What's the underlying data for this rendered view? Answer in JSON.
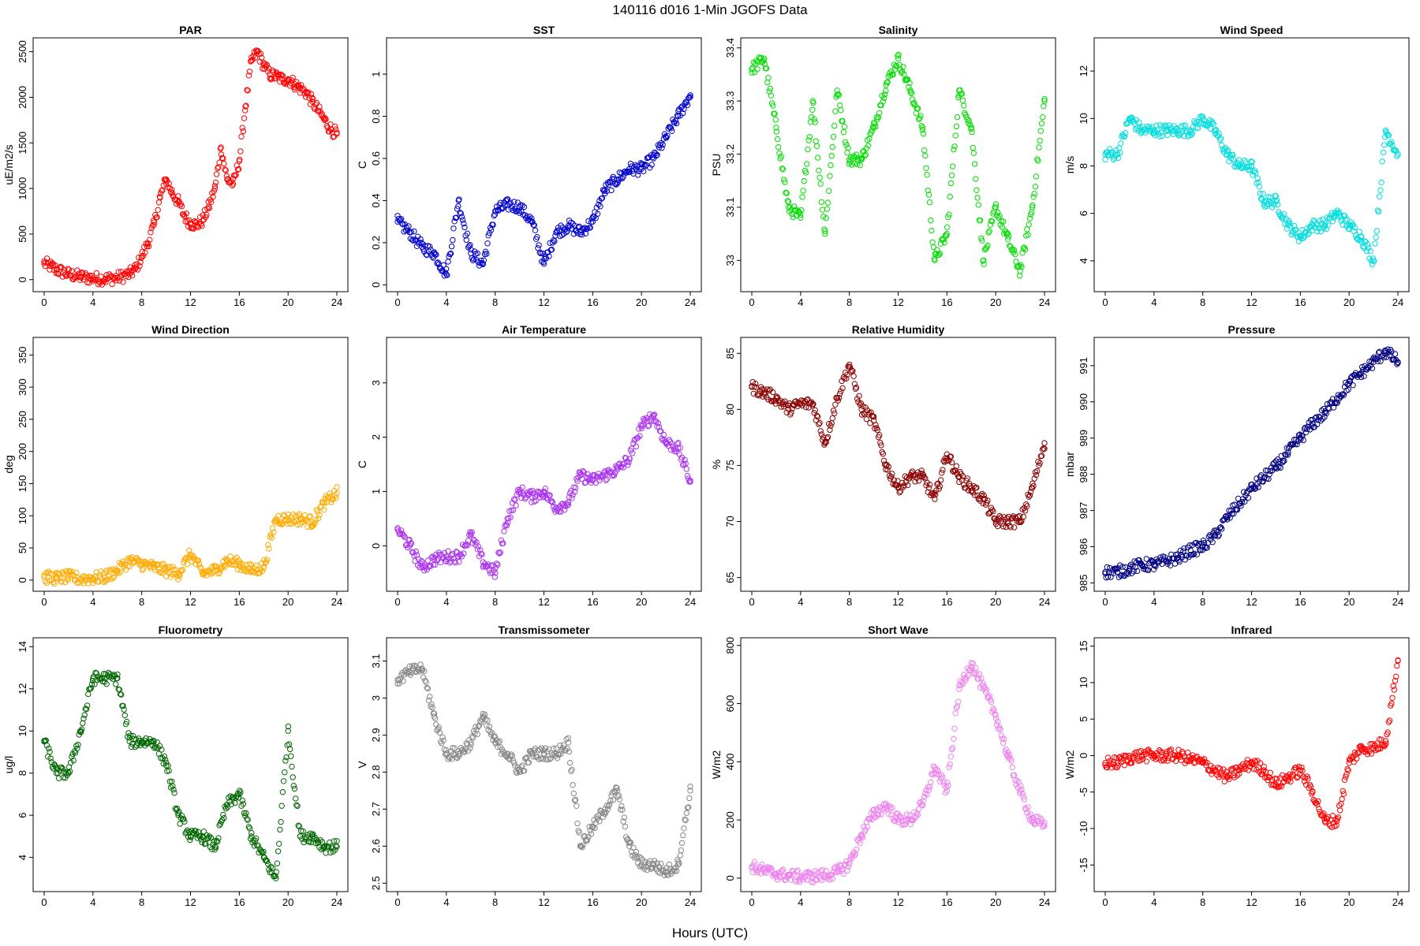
{
  "figure": {
    "title": "140116   d016   1-Min  JGOFS Data",
    "xlabel": "Hours (UTC)"
  },
  "chart_data": [
    {
      "type": "scatter",
      "title": "PAR",
      "ylabel": "uE/m2/s",
      "color": "#ff0000",
      "xlim": [
        0,
        24
      ],
      "xticks": [
        0,
        4,
        8,
        12,
        16,
        20,
        24
      ],
      "ylim": [
        -80,
        2600
      ],
      "yticks": [
        0,
        500,
        1000,
        1500,
        2000,
        2500
      ],
      "x": [
        0,
        0.5,
        1,
        2,
        3,
        4,
        5,
        6,
        7,
        7.5,
        8,
        8.5,
        9,
        9.5,
        10,
        10.5,
        11,
        11.5,
        12,
        12.5,
        13,
        13.5,
        14,
        14.5,
        15,
        15.5,
        16,
        16.5,
        17,
        17.5,
        18,
        18.5,
        19,
        19.5,
        20,
        20.5,
        21,
        21.5,
        22,
        22.5,
        23,
        23.5,
        24
      ],
      "y": [
        180,
        150,
        110,
        60,
        30,
        15,
        10,
        20,
        60,
        120,
        250,
        400,
        600,
        900,
        1100,
        950,
        850,
        700,
        620,
        600,
        650,
        800,
        1000,
        1450,
        1100,
        1050,
        1300,
        1900,
        2400,
        2500,
        2350,
        2250,
        2230,
        2200,
        2200,
        2150,
        2100,
        2050,
        1950,
        1850,
        1750,
        1650,
        1600
      ]
    },
    {
      "type": "scatter",
      "title": "SST",
      "ylabel": "C",
      "color": "#0000cc",
      "xlim": [
        0,
        24
      ],
      "xticks": [
        0,
        4,
        8,
        12,
        16,
        20,
        24
      ],
      "ylim": [
        -0.01,
        1.15
      ],
      "yticks": [
        0.0,
        0.2,
        0.4,
        0.6,
        0.8,
        1.0
      ],
      "x": [
        0,
        1,
        2,
        3,
        4,
        5,
        6,
        7,
        8,
        9,
        10,
        11,
        12,
        13,
        14,
        15,
        16,
        17,
        18,
        19,
        20,
        21,
        22,
        23,
        24
      ],
      "y": [
        0.3,
        0.25,
        0.18,
        0.15,
        0.05,
        0.4,
        0.15,
        0.1,
        0.35,
        0.38,
        0.37,
        0.3,
        0.1,
        0.25,
        0.28,
        0.25,
        0.3,
        0.45,
        0.5,
        0.55,
        0.55,
        0.6,
        0.7,
        0.8,
        0.9
      ]
    },
    {
      "type": "scatter",
      "title": "Salinity",
      "ylabel": "PSU",
      "color": "#00dd00",
      "xlim": [
        0,
        24
      ],
      "xticks": [
        0,
        4,
        8,
        12,
        16,
        20,
        24
      ],
      "ylim": [
        32.95,
        33.41
      ],
      "yticks": [
        33.0,
        33.1,
        33.2,
        33.3,
        33.4
      ],
      "x": [
        0,
        1,
        2,
        3,
        4,
        5,
        6,
        7,
        8,
        9,
        10,
        11,
        12,
        13,
        14,
        15,
        16,
        17,
        18,
        19,
        20,
        21,
        22,
        23,
        24
      ],
      "y": [
        33.36,
        33.38,
        33.25,
        33.1,
        33.08,
        33.3,
        33.05,
        33.32,
        33.19,
        33.19,
        33.25,
        33.33,
        33.38,
        33.32,
        33.25,
        33.0,
        33.05,
        33.32,
        33.25,
        33.0,
        33.1,
        33.04,
        32.98,
        33.1,
        33.3
      ]
    },
    {
      "type": "scatter",
      "title": "Wind Speed",
      "ylabel": "m/s",
      "color": "#00dddd",
      "xlim": [
        0,
        24
      ],
      "xticks": [
        0,
        4,
        8,
        12,
        16,
        20,
        24
      ],
      "ylim": [
        2.9,
        13.2
      ],
      "yticks": [
        4,
        6,
        8,
        10,
        12
      ],
      "x": [
        0,
        1,
        2,
        3,
        4,
        5,
        6,
        7,
        8,
        9,
        10,
        11,
        12,
        13,
        14,
        15,
        16,
        17,
        18,
        19,
        20,
        21,
        22,
        23,
        24
      ],
      "y": [
        8.5,
        8.5,
        10,
        9.5,
        9.5,
        9.5,
        9.5,
        9.5,
        10,
        9.5,
        8.5,
        8,
        8,
        6.5,
        6.5,
        5.5,
        5,
        5.5,
        5.5,
        6,
        5.5,
        5,
        4,
        9.5,
        8.5
      ]
    },
    {
      "type": "scatter",
      "title": "Wind Direction",
      "ylabel": "deg",
      "color": "#ffaa00",
      "xlim": [
        0,
        24
      ],
      "xticks": [
        0,
        4,
        8,
        12,
        16,
        20,
        24
      ],
      "ylim": [
        -10,
        370
      ],
      "yticks": [
        0,
        50,
        100,
        150,
        200,
        250,
        300,
        350
      ],
      "x": [
        0,
        1,
        2,
        3,
        4,
        5,
        6,
        7,
        8,
        9,
        10,
        11,
        12,
        13,
        14,
        15,
        16,
        17,
        18,
        19,
        20,
        21,
        22,
        23,
        24
      ],
      "y": [
        5,
        3,
        5,
        2,
        3,
        5,
        15,
        30,
        25,
        20,
        15,
        10,
        40,
        10,
        15,
        30,
        25,
        15,
        20,
        95,
        95,
        95,
        90,
        120,
        135
      ]
    },
    {
      "type": "scatter",
      "title": "Air Temperature",
      "ylabel": "C",
      "color": "#aa33ee",
      "xlim": [
        0,
        24
      ],
      "xticks": [
        0,
        4,
        8,
        12,
        16,
        20,
        24
      ],
      "ylim": [
        -0.75,
        3.75
      ],
      "yticks": [
        0,
        1,
        2,
        3
      ],
      "x": [
        0,
        1,
        2,
        3,
        4,
        5,
        6,
        7,
        8,
        9,
        10,
        11,
        12,
        13,
        14,
        15,
        16,
        17,
        18,
        19,
        20,
        21,
        22,
        23,
        24
      ],
      "y": [
        0.3,
        0,
        -0.4,
        -0.25,
        -0.2,
        -0.2,
        0.2,
        -0.3,
        -0.5,
        0.5,
        1.0,
        0.9,
        1.0,
        0.7,
        0.8,
        1.3,
        1.2,
        1.3,
        1.4,
        1.6,
        2.2,
        2.4,
        1.9,
        1.8,
        1.2
      ]
    },
    {
      "type": "scatter",
      "title": "Relative Humidity",
      "ylabel": "%",
      "color": "#8b0000",
      "xlim": [
        0,
        24
      ],
      "xticks": [
        0,
        4,
        8,
        12,
        16,
        20,
        24
      ],
      "ylim": [
        64.2,
        86
      ],
      "yticks": [
        65,
        70,
        75,
        80,
        85
      ],
      "x": [
        0,
        1,
        2,
        3,
        4,
        5,
        6,
        7,
        8,
        9,
        10,
        11,
        12,
        13,
        14,
        15,
        16,
        17,
        18,
        19,
        20,
        21,
        22,
        23,
        24
      ],
      "y": [
        82,
        81.5,
        81,
        80,
        80.5,
        80.5,
        77,
        81,
        84,
        80,
        79,
        75,
        73,
        74,
        74,
        72,
        76,
        74,
        73,
        72,
        70,
        70,
        70,
        73,
        77
      ]
    },
    {
      "type": "scatter",
      "title": "Pressure",
      "ylabel": "mbar",
      "color": "#000080",
      "xlim": [
        0,
        24
      ],
      "xticks": [
        0,
        4,
        8,
        12,
        16,
        20,
        24
      ],
      "ylim": [
        984.9,
        991.65
      ],
      "yticks": [
        985,
        986,
        987,
        988,
        989,
        990,
        991
      ],
      "x": [
        0,
        1,
        2,
        3,
        4,
        5,
        6,
        7,
        8,
        9,
        10,
        11,
        12,
        13,
        14,
        15,
        16,
        17,
        18,
        19,
        20,
        21,
        22,
        23,
        24
      ],
      "y": [
        985.3,
        985.3,
        985.4,
        985.5,
        985.5,
        985.6,
        985.7,
        985.9,
        986.0,
        986.3,
        986.8,
        987.2,
        987.6,
        987.9,
        988.2,
        988.6,
        989.0,
        989.4,
        989.7,
        990.1,
        990.5,
        990.8,
        991.1,
        991.4,
        991.1
      ]
    },
    {
      "type": "scatter",
      "title": "Fluorometry",
      "ylabel": "ug/l",
      "color": "#006600",
      "xlim": [
        0,
        24
      ],
      "xticks": [
        0,
        4,
        8,
        12,
        16,
        20,
        24
      ],
      "ylim": [
        2.6,
        14.2
      ],
      "yticks": [
        4,
        6,
        8,
        10,
        12,
        14
      ],
      "x": [
        0,
        1,
        2,
        3,
        4,
        5,
        6,
        7,
        8,
        9,
        10,
        11,
        12,
        13,
        14,
        15,
        16,
        17,
        18,
        19,
        20,
        21,
        22,
        23,
        24
      ],
      "y": [
        9.5,
        8,
        8,
        10,
        12.5,
        12.5,
        12.5,
        9.5,
        9.5,
        9.5,
        8.5,
        6,
        5,
        5,
        4.5,
        6.5,
        7,
        5,
        4,
        3,
        10,
        5,
        5,
        4.5,
        4.5
      ]
    },
    {
      "type": "scatter",
      "title": "Transmissometer",
      "ylabel": "V",
      "color": "#888888",
      "xlim": [
        0,
        24
      ],
      "xticks": [
        0,
        4,
        8,
        12,
        16,
        20,
        24
      ],
      "ylim": [
        2.49,
        3.15
      ],
      "yticks": [
        2.5,
        2.6,
        2.7,
        2.8,
        2.9,
        3.0,
        3.1
      ],
      "x": [
        0,
        1,
        2,
        3,
        4,
        5,
        6,
        7,
        8,
        9,
        10,
        11,
        12,
        13,
        14,
        15,
        16,
        17,
        18,
        19,
        20,
        21,
        22,
        23,
        24
      ],
      "y": [
        3.05,
        3.07,
        3.08,
        2.95,
        2.85,
        2.85,
        2.88,
        2.95,
        2.88,
        2.85,
        2.8,
        2.85,
        2.85,
        2.85,
        2.88,
        2.6,
        2.65,
        2.7,
        2.75,
        2.6,
        2.55,
        2.55,
        2.53,
        2.55,
        2.75
      ]
    },
    {
      "type": "scatter",
      "title": "Short Wave",
      "ylabel": "W/m2",
      "color": "#ee82ee",
      "xlim": [
        0,
        24
      ],
      "xticks": [
        0,
        4,
        8,
        12,
        16,
        20,
        24
      ],
      "ylim": [
        -30,
        810
      ],
      "yticks": [
        0,
        200,
        400,
        600,
        800
      ],
      "x": [
        0,
        1,
        2,
        3,
        4,
        5,
        6,
        7,
        8,
        9,
        10,
        11,
        12,
        13,
        14,
        15,
        16,
        17,
        18,
        19,
        20,
        21,
        22,
        23,
        24
      ],
      "y": [
        40,
        25,
        15,
        8,
        5,
        5,
        10,
        20,
        50,
        150,
        220,
        250,
        200,
        200,
        250,
        380,
        300,
        650,
        740,
        650,
        560,
        420,
        300,
        200,
        180
      ]
    },
    {
      "type": "scatter",
      "title": "Infrared",
      "ylabel": "W/m2",
      "color": "#ff0000",
      "xlim": [
        0,
        24
      ],
      "xticks": [
        0,
        4,
        8,
        12,
        16,
        20,
        24
      ],
      "ylim": [
        -18,
        15.5
      ],
      "yticks": [
        -15,
        -10,
        -5,
        0,
        5,
        10,
        15
      ],
      "x": [
        0,
        1,
        2,
        3,
        4,
        5,
        6,
        7,
        8,
        9,
        10,
        11,
        12,
        13,
        14,
        15,
        16,
        17,
        18,
        19,
        20,
        21,
        22,
        23,
        24
      ],
      "y": [
        -1,
        -1,
        -0.3,
        0,
        0,
        0,
        0,
        -0.5,
        -1,
        -2,
        -3,
        -2,
        -1,
        -2,
        -4,
        -3,
        -2,
        -5,
        -9,
        -9,
        -1,
        1,
        1,
        2,
        13
      ]
    }
  ]
}
